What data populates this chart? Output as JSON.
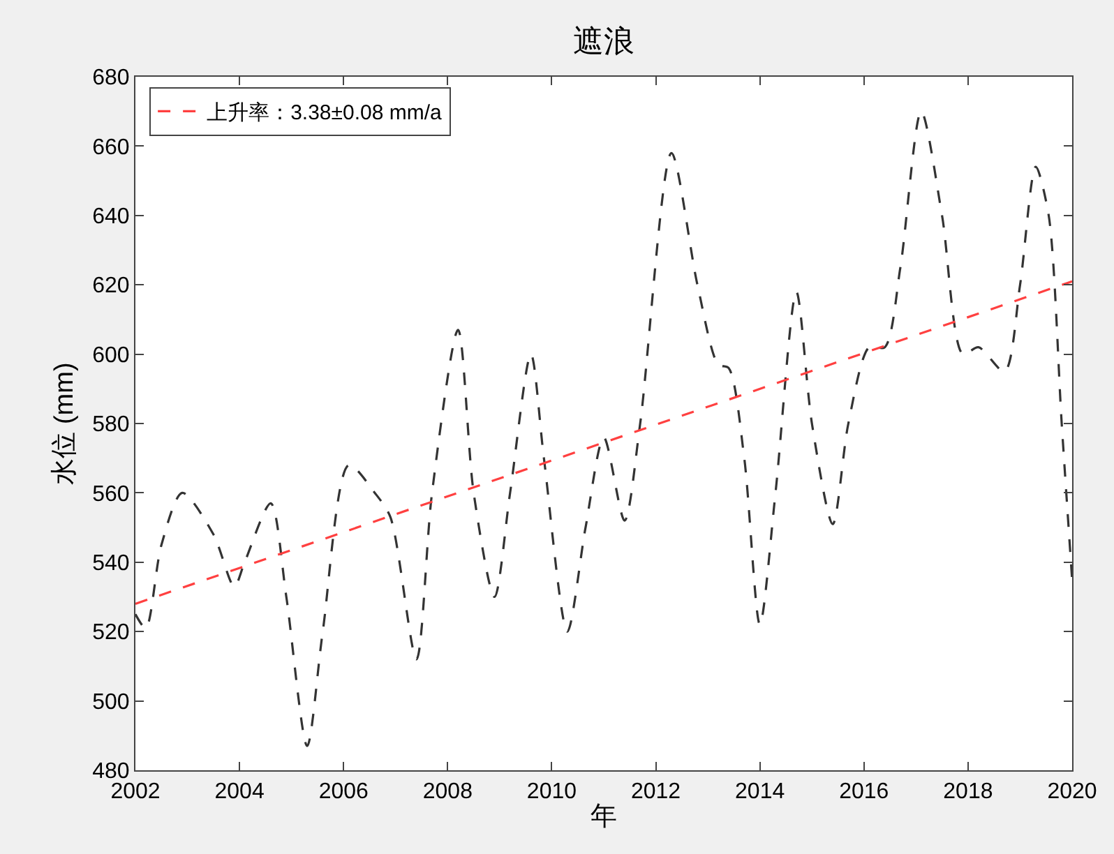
{
  "chart_data": {
    "type": "line",
    "title": "遮浪",
    "xlabel": "年",
    "ylabel": "水位 (mm)",
    "xlim": [
      2002,
      2020
    ],
    "xticks": [
      2002,
      2004,
      2006,
      2008,
      2010,
      2012,
      2014,
      2016,
      2018,
      2020
    ],
    "ylim": [
      480,
      680
    ],
    "yticks": [
      480,
      500,
      520,
      540,
      560,
      580,
      600,
      620,
      640,
      660,
      680
    ],
    "legend": "top left",
    "line_style": "dashed",
    "marker": "none",
    "series": [
      {
        "color": "#333333",
        "x": [
          2002.0,
          2002.2,
          2002.5,
          2002.9,
          2003.5,
          2003.9,
          2004.1,
          2004.6,
          2004.9,
          2005.3,
          2005.6,
          2006.1,
          2006.6,
          2006.9,
          2007.4,
          2007.7,
          2008.2,
          2008.5,
          2008.9,
          2009.2,
          2009.6,
          2009.85,
          2010.3,
          2010.65,
          2011.0,
          2011.4,
          2011.7,
          2012.3,
          2012.8,
          2013.2,
          2013.4,
          2013.7,
          2014.0,
          2014.3,
          2014.7,
          2015.0,
          2015.4,
          2015.7,
          2016.1,
          2016.4,
          2016.7,
          2017.1,
          2017.5,
          2017.9,
          2018.2,
          2018.7,
          2019.0,
          2019.3,
          2019.55,
          2019.8,
          2020.0
        ],
        "values": [
          525,
          521,
          545,
          560,
          548,
          533,
          540,
          557,
          530,
          487,
          520,
          568,
          560,
          553,
          512,
          560,
          607,
          560,
          530,
          560,
          600,
          570,
          520,
          550,
          576,
          552,
          580,
          658,
          620,
          597,
          596,
          570,
          522,
          560,
          618,
          580,
          551,
          580,
          602,
          602,
          625,
          670,
          640,
          600,
          602,
          595,
          620,
          654,
          640,
          580,
          535
        ]
      },
      {
        "name": "上升率：3.38±0.08 mm/a",
        "color": "#ff4040",
        "x": [
          2002,
          2020
        ],
        "values": [
          528,
          621
        ]
      }
    ]
  }
}
